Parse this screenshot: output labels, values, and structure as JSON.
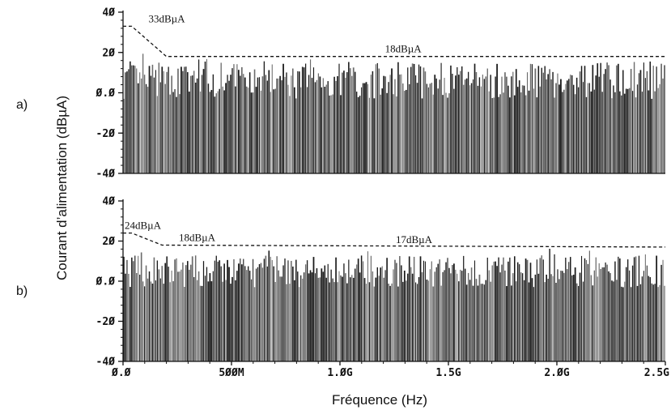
{
  "chart_data": [
    {
      "type": "bar",
      "panel_label": "a)",
      "xlim": [
        0,
        2.5
      ],
      "ylim": [
        -40,
        40
      ],
      "yticks": [
        {
          "v": 40,
          "label": "40"
        },
        {
          "v": 20,
          "label": "20"
        },
        {
          "v": 0,
          "label": "0.0"
        },
        {
          "v": -20,
          "label": "-20"
        },
        {
          "v": -40,
          "label": "-40"
        }
      ],
      "bar_count": 340,
      "bar_level_dbua": 6,
      "bar_variation_dbua": 9,
      "envelope_x_ghz": [
        0,
        0.04,
        0.2,
        2.5
      ],
      "envelope_y_dbua": [
        33,
        33,
        18,
        18
      ],
      "annotations": [
        {
          "text": "33dBµA",
          "x": 0.11,
          "y": 33
        },
        {
          "text": "18dBµA",
          "x": 1.2,
          "y": 18
        }
      ]
    },
    {
      "type": "bar",
      "panel_label": "b)",
      "xlim": [
        0,
        2.5
      ],
      "ylim": [
        -40,
        40
      ],
      "yticks": [
        {
          "v": 40,
          "label": "40"
        },
        {
          "v": 20,
          "label": "20"
        },
        {
          "v": 0,
          "label": "0.0"
        },
        {
          "v": -20,
          "label": "-20"
        },
        {
          "v": -40,
          "label": "-40"
        }
      ],
      "bar_count": 340,
      "bar_level_dbua": 5,
      "bar_variation_dbua": 8,
      "envelope_x_ghz": [
        0,
        0.04,
        0.18,
        2.5
      ],
      "envelope_y_dbua": [
        24,
        24,
        18,
        17
      ],
      "annotations": [
        {
          "text": "24dBµA",
          "x": 0.0,
          "y": 24
        },
        {
          "text": "18dBµA",
          "x": 0.25,
          "y": 18
        },
        {
          "text": "17dBµA",
          "x": 1.25,
          "y": 17
        }
      ]
    }
  ],
  "xticks": [
    {
      "v": 0,
      "label": "0.0"
    },
    {
      "v": 0.5,
      "label": "500M"
    },
    {
      "v": 1.0,
      "label": "1.0G"
    },
    {
      "v": 1.5,
      "label": "1.5G"
    },
    {
      "v": 2.0,
      "label": "2.0G"
    },
    {
      "v": 2.5,
      "label": "2.5G"
    }
  ],
  "xlabel": "Fréquence (Hz)",
  "ylabel": "Courant d’alimentation (dBµA)",
  "colors": {
    "bars": "#1a1a1a",
    "axis": "#111111",
    "envelope": "#111111"
  }
}
